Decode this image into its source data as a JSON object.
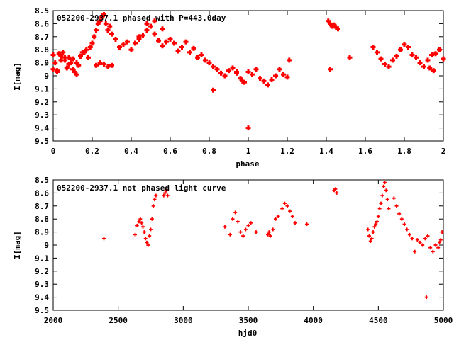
{
  "chart_data": [
    {
      "type": "scatter",
      "title": "052200-2937.1 phased with P=443.0day",
      "xlabel": "phase",
      "ylabel": "I[mag]",
      "xlim": [
        0,
        2
      ],
      "ylim": [
        8.5,
        9.5
      ],
      "y_inverted": true,
      "xticks": [
        "0",
        "0.2",
        "0.4",
        "0.6",
        "0.8",
        "1",
        "1.2",
        "1.4",
        "1.6",
        "1.8",
        "2"
      ],
      "yticks": [
        "8.5",
        "8.6",
        "8.7",
        "8.8",
        "8.9",
        "9",
        "9.1",
        "9.2",
        "9.3",
        "9.4",
        "9.5"
      ],
      "marker_color": "#ff0000",
      "marker": "filled-plus",
      "grid": false,
      "series": [
        {
          "x": [
            0.0,
            0.01,
            0.02,
            0.03,
            0.04,
            0.05,
            0.06,
            0.07,
            0.08,
            0.09,
            0.1,
            0.11,
            0.12,
            0.13,
            0.14,
            0.15,
            0.0,
            0.02,
            0.04,
            0.06,
            0.08,
            0.1,
            0.12,
            0.14,
            0.16,
            0.17,
            0.18,
            0.19,
            0.2,
            0.21,
            0.22,
            0.23,
            0.24,
            0.25,
            0.26,
            0.27,
            0.28,
            0.29,
            0.3,
            0.22,
            0.24,
            0.26,
            0.28,
            0.3,
            0.32,
            0.34,
            0.36,
            0.38,
            0.4,
            0.42,
            0.44,
            0.46,
            0.48,
            0.5,
            0.52,
            0.54,
            0.56,
            0.58,
            0.44,
            0.48,
            0.52,
            0.56,
            0.6,
            0.62,
            0.64,
            0.66,
            0.68,
            0.7,
            0.72,
            0.74,
            0.76,
            0.78,
            0.8,
            0.82,
            0.84,
            0.86,
            0.88,
            0.9,
            0.92,
            0.94,
            0.96,
            0.98,
            0.82,
            0.94,
            0.97,
            1.0,
            1.02,
            1.04,
            1.06,
            1.08,
            1.1,
            1.12,
            1.14,
            1.16,
            1.18,
            1.2,
            1.21,
            1.0,
            1.41,
            1.42,
            1.43,
            1.44,
            1.45,
            1.46,
            1.42,
            1.52,
            1.64,
            1.66,
            1.68,
            1.7,
            1.72,
            1.74,
            1.76,
            1.78,
            1.8,
            1.82,
            1.84,
            1.86,
            1.88,
            1.9,
            1.92,
            1.94,
            1.96,
            1.98,
            2.0,
            1.93,
            1.95
          ],
          "y": [
            8.84,
            8.9,
            8.96,
            8.83,
            8.85,
            8.82,
            8.88,
            8.94,
            8.86,
            8.9,
            8.95,
            8.97,
            8.99,
            8.92,
            8.85,
            8.82,
            8.95,
            8.97,
            8.88,
            8.86,
            8.91,
            8.87,
            8.9,
            8.85,
            8.82,
            8.8,
            8.86,
            8.78,
            8.75,
            8.7,
            8.65,
            8.6,
            8.58,
            8.55,
            8.53,
            8.6,
            8.65,
            8.62,
            8.68,
            8.92,
            8.9,
            8.91,
            8.93,
            8.92,
            8.72,
            8.78,
            8.76,
            8.74,
            8.8,
            8.75,
            8.72,
            8.69,
            8.65,
            8.62,
            8.68,
            8.73,
            8.77,
            8.74,
            8.7,
            8.6,
            8.58,
            8.64,
            8.72,
            8.75,
            8.81,
            8.78,
            8.74,
            8.82,
            8.79,
            8.86,
            8.84,
            8.88,
            8.9,
            8.93,
            8.95,
            8.98,
            9.0,
            8.96,
            8.94,
            8.97,
            9.02,
            9.05,
            9.11,
            8.98,
            9.04,
            8.97,
            8.99,
            8.95,
            9.02,
            9.04,
            9.07,
            9.03,
            9.0,
            8.95,
            8.99,
            9.01,
            8.88,
            9.4,
            8.58,
            8.6,
            8.62,
            8.61,
            8.63,
            8.64,
            8.95,
            8.86,
            8.78,
            8.82,
            8.87,
            8.91,
            8.93,
            8.88,
            8.85,
            8.8,
            8.76,
            8.78,
            8.84,
            8.86,
            8.9,
            8.93,
            8.88,
            8.84,
            8.83,
            8.8,
            8.87,
            8.94,
            8.96
          ]
        }
      ]
    },
    {
      "type": "scatter",
      "title": "052200-2937.1 not phased light curve",
      "xlabel": "hjd0",
      "ylabel": "I[mag]",
      "xlim": [
        2000,
        5000
      ],
      "ylim": [
        8.5,
        9.5
      ],
      "y_inverted": true,
      "xticks": [
        "2000",
        "2500",
        "3000",
        "3500",
        "4000",
        "4500",
        "5000"
      ],
      "yticks": [
        "8.5",
        "8.6",
        "8.7",
        "8.8",
        "8.9",
        "9",
        "9.1",
        "9.2",
        "9.3",
        "9.4",
        "9.5"
      ],
      "marker_color": "#ff0000",
      "marker": "small-plus",
      "grid": false,
      "series": [
        {
          "x": [
            2390,
            2630,
            2645,
            2660,
            2670,
            2680,
            2690,
            2700,
            2710,
            2720,
            2730,
            2740,
            2750,
            2760,
            2770,
            2780,
            2790,
            2850,
            2860,
            2870,
            2880,
            3320,
            3360,
            3380,
            3400,
            3420,
            3440,
            3460,
            3480,
            3500,
            3520,
            3560,
            3650,
            3660,
            3670,
            3690,
            3710,
            3730,
            3760,
            3780,
            3800,
            3820,
            3840,
            3860,
            3950,
            4160,
            4170,
            4180,
            4420,
            4430,
            4440,
            4450,
            4460,
            4470,
            4480,
            4490,
            4500,
            4510,
            4520,
            4530,
            4540,
            4550,
            4560,
            4570,
            4580,
            4620,
            4640,
            4660,
            4680,
            4700,
            4720,
            4740,
            4760,
            4780,
            4800,
            4820,
            4840,
            4860,
            4880,
            4900,
            4920,
            4940,
            4960,
            4970,
            4980,
            4990,
            4870
          ],
          "y": [
            8.95,
            8.92,
            8.85,
            8.82,
            8.8,
            8.83,
            8.86,
            8.9,
            8.95,
            8.98,
            9.0,
            8.93,
            8.88,
            8.8,
            8.7,
            8.65,
            8.62,
            8.62,
            8.6,
            8.58,
            8.62,
            8.86,
            8.92,
            8.8,
            8.75,
            8.82,
            8.9,
            8.93,
            8.88,
            8.85,
            8.83,
            8.9,
            8.92,
            8.9,
            8.93,
            8.88,
            8.8,
            8.78,
            8.72,
            8.68,
            8.7,
            8.74,
            8.78,
            8.83,
            8.84,
            8.58,
            8.57,
            8.6,
            8.88,
            8.93,
            8.97,
            8.95,
            8.9,
            8.86,
            8.84,
            8.82,
            8.78,
            8.72,
            8.68,
            8.62,
            8.55,
            8.52,
            8.58,
            8.65,
            8.72,
            8.64,
            8.7,
            8.76,
            8.8,
            8.84,
            8.88,
            8.92,
            8.95,
            9.05,
            8.96,
            8.98,
            9.0,
            8.95,
            8.93,
            9.02,
            9.05,
            9.0,
            9.02,
            8.98,
            8.96,
            8.9,
            9.4
          ]
        }
      ]
    }
  ]
}
